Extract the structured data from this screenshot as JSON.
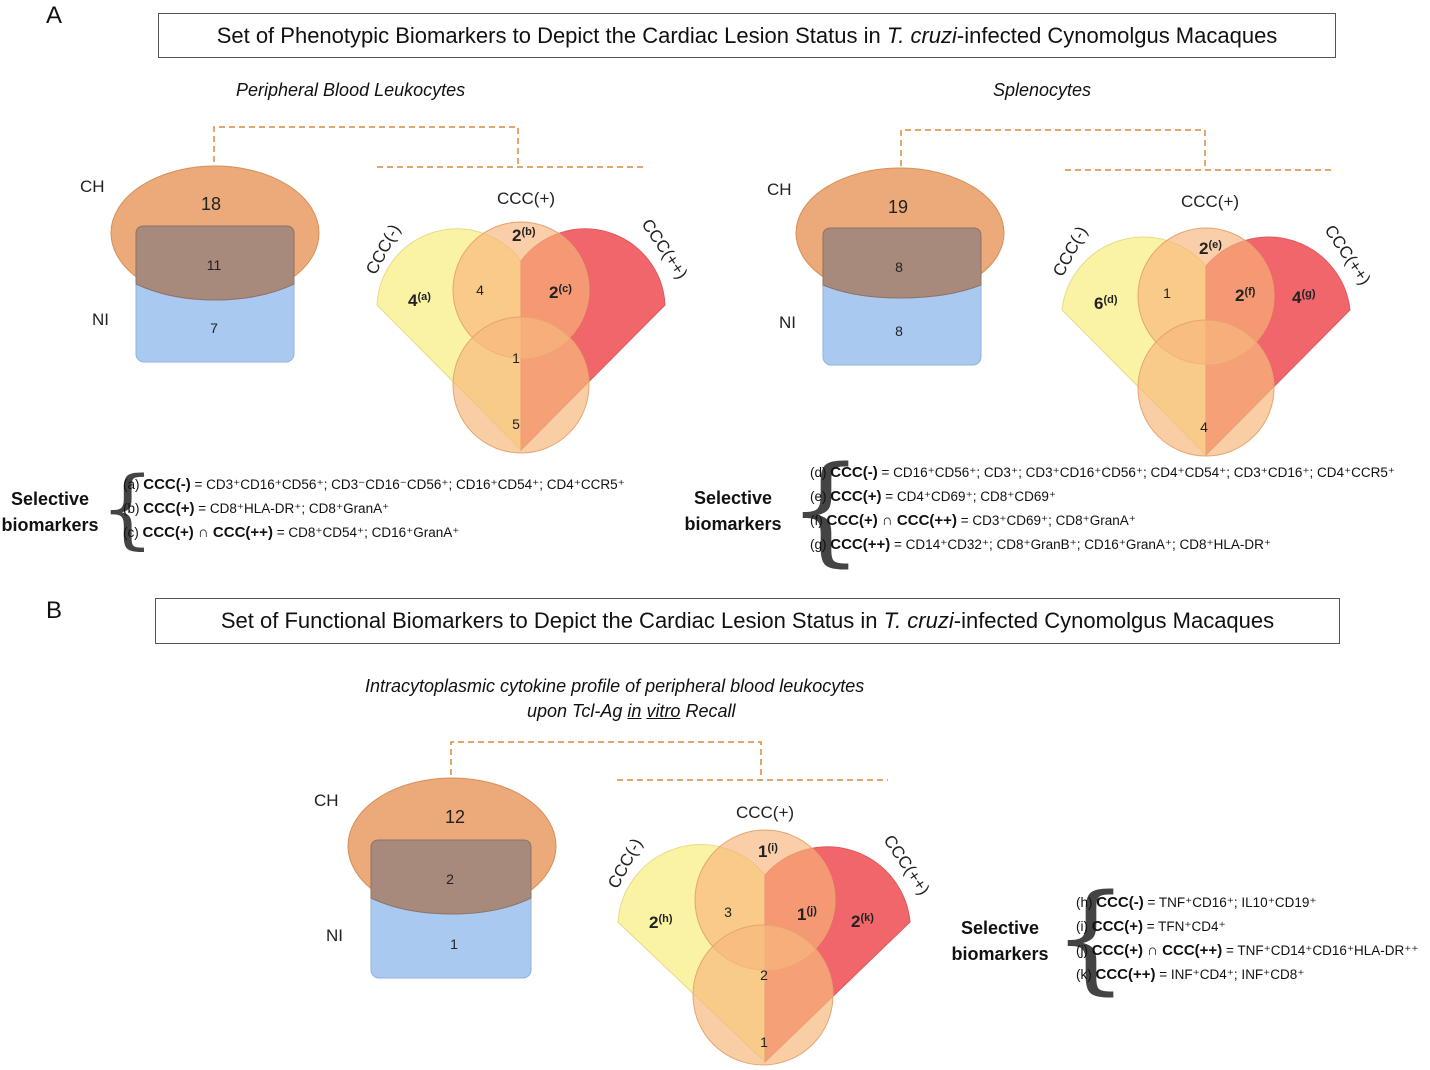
{
  "panel_a": {
    "letter": "A",
    "title_pre": "Set of Phenotypic Biomarkers to Depict the Cardiac Lesion Status in ",
    "title_italic": "T. cruzi",
    "title_post": "-infected Cynomolgus Macaques",
    "left": {
      "subtitle": "Peripheral Blood Leukocytes",
      "ch_label": "CH",
      "ni_label": "NI",
      "ch_only": "18",
      "overlap": "11",
      "ni_only": "7",
      "venn": {
        "label_minus": "CCC(-)",
        "label_plus": "CCC(+)",
        "label_pp": "CCC(++)",
        "minus_only": "4",
        "minus_only_sup": "(a)",
        "plus_only": "2",
        "plus_only_sup": "(b)",
        "plus_pp": "2",
        "plus_pp_sup": "(c)",
        "minus_plus": "4",
        "center": "1",
        "bottom": "5"
      }
    },
    "right": {
      "subtitle": "Splenocytes",
      "ch_label": "CH",
      "ni_label": "NI",
      "ch_only": "19",
      "overlap": "8",
      "ni_only": "8",
      "venn": {
        "label_minus": "CCC(-)",
        "label_plus": "CCC(+)",
        "label_pp": "CCC(++)",
        "minus_only": "6",
        "minus_only_sup": "(d)",
        "plus_only": "2",
        "plus_only_sup": "(e)",
        "plus_pp": "2",
        "plus_pp_sup": "(f)",
        "pp_only": "4",
        "pp_only_sup": "(g)",
        "minus_plus": "1",
        "bottom": "4"
      }
    },
    "selective_left": {
      "label_line1": "Selective",
      "label_line2": "biomarkers",
      "items": [
        {
          "key": "(a)",
          "group": "CCC(-)",
          "text": "= CD3⁺CD16⁺CD56⁺; CD3⁻CD16⁻CD56⁺; CD16⁺CD54⁺; CD4⁺CCR5⁺"
        },
        {
          "key": "(b)",
          "group": "CCC(+)",
          "text": "= CD8⁺HLA-DR⁺; CD8⁺GranA⁺"
        },
        {
          "key": "(c)",
          "group": "CCC(+) ∩ CCC(++)",
          "text": "= CD8⁺CD54⁺; CD16⁺GranA⁺"
        }
      ]
    },
    "selective_right": {
      "label_line1": "Selective",
      "label_line2": "biomarkers",
      "items": [
        {
          "key": "(d)",
          "group": "CCC(-)",
          "text": "= CD16⁺CD56⁺; CD3⁺; CD3⁺CD16⁺CD56⁺; CD4⁺CD54⁺; CD3⁺CD16⁺; CD4⁺CCR5⁺"
        },
        {
          "key": "(e)",
          "group": "CCC(+)",
          "text": "= CD4⁺CD69⁺; CD8⁺CD69⁺"
        },
        {
          "key": "(f)",
          "group": "CCC(+) ∩ CCC(++)",
          "text": "= CD3⁺CD69⁺; CD8⁺GranA⁺"
        },
        {
          "key": "(g)",
          "group": "CCC(++)",
          "text": "= CD14⁺CD32⁺; CD8⁺GranB⁺; CD16⁺GranA⁺; CD8⁺HLA-DR⁺"
        }
      ]
    }
  },
  "panel_b": {
    "letter": "B",
    "title_pre": "Set of Functional Biomarkers to Depict the Cardiac Lesion Status in ",
    "title_italic": "T. cruzi",
    "title_post": "-infected Cynomolgus Macaques",
    "subtitle_line1": "Intracytoplasmic cytokine profile of peripheral blood leukocytes",
    "subtitle_line2_pre": "upon Tcl-Ag ",
    "subtitle_line2_u1": "in",
    "subtitle_line2_sp": " ",
    "subtitle_line2_u2": "vitro",
    "subtitle_line2_post": " Recall",
    "ch_label": "CH",
    "ni_label": "NI",
    "ch_only": "12",
    "overlap": "2",
    "ni_only": "1",
    "venn": {
      "label_minus": "CCC(-)",
      "label_plus": "CCC(+)",
      "label_pp": "CCC(++)",
      "minus_only": "2",
      "minus_only_sup": "(h)",
      "plus_only": "1",
      "plus_only_sup": "(i)",
      "plus_pp": "1",
      "plus_pp_sup": "(j)",
      "pp_only": "2",
      "pp_only_sup": "(k)",
      "minus_plus": "3",
      "center": "2",
      "bottom": "1"
    },
    "selective": {
      "label_line1": "Selective",
      "label_line2": "biomarkers",
      "items": [
        {
          "key": "(h)",
          "group": "CCC(-)",
          "text": "= TNF⁺CD16⁺; IL10⁺CD19⁺"
        },
        {
          "key": "(i)",
          "group": "CCC(+)",
          "text": "= TFN⁺CD4⁺"
        },
        {
          "key": "(j)",
          "group": "CCC(+) ∩ CCC(++)",
          "text": "= TNF⁺CD14⁺CD16⁺HLA-DR⁺⁺"
        },
        {
          "key": "(k)",
          "group": "CCC(++)",
          "text": "= INF⁺CD4⁺; INF⁺CD8⁺"
        }
      ]
    }
  },
  "colors": {
    "ch_fill": "#eaa06a",
    "ni_fill": "#a9c9f1",
    "overlap_fill": "#a88a7c",
    "minus_fill": "#fbf3a4",
    "plus_fill": "#fac99a",
    "pp_fill": "#f0666a",
    "dashed": "#d98a3c"
  }
}
